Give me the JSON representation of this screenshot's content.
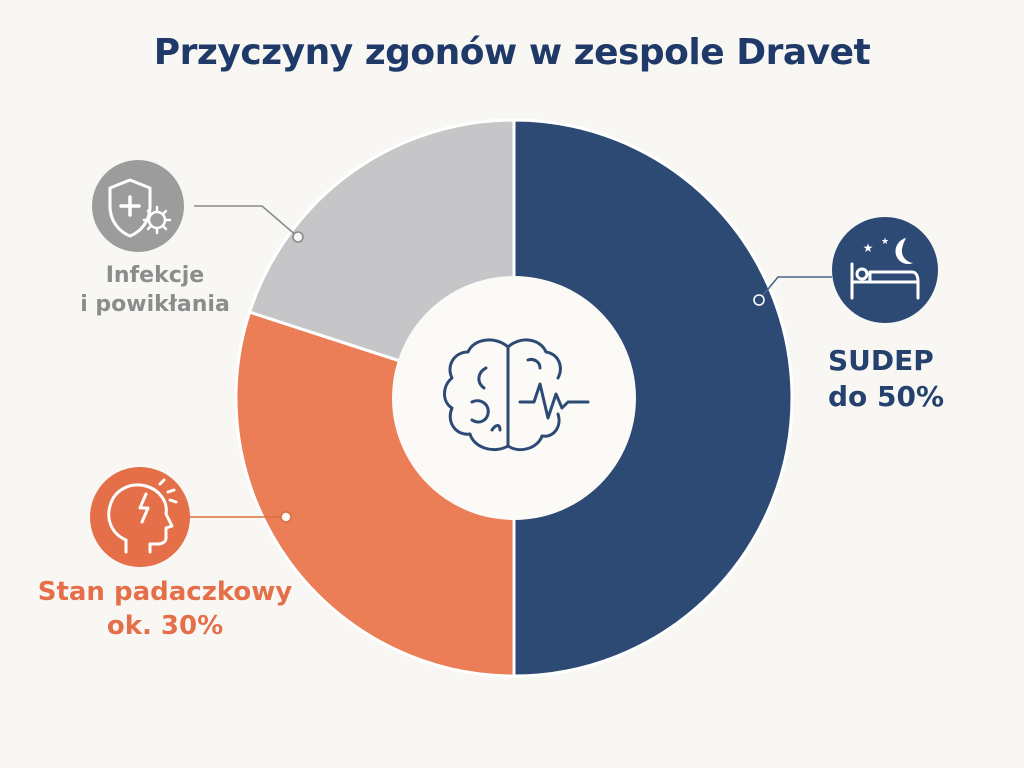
{
  "title": "Przyczyny zgonów w zespole Dravet",
  "chart_data": {
    "type": "pie",
    "variant": "donut",
    "title": "Przyczyny zgonów w zespole Dravet",
    "segments": [
      {
        "label": "SUDEP",
        "value_text": "do 50%",
        "value": 50,
        "color": "#2d4a74",
        "icon": "bed-night-icon"
      },
      {
        "label": "Stan padaczkowy",
        "value_text": "ok. 30%",
        "value": 30,
        "color": "#eb7e57",
        "icon": "head-seizure-icon"
      },
      {
        "label": "Infekcje i powikłania",
        "value_text": "",
        "value": 20,
        "color": "#c6c6c8",
        "icon": "shield-virus-icon"
      }
    ],
    "center_icon": "brain-pulse-icon"
  },
  "labels": {
    "infekcje_line1": "Infekcje",
    "infekcje_line2": "i powikłania",
    "sudep_line1": "SUDEP",
    "sudep_line2": "do 50%",
    "stan_line1": "Stan padaczkowy",
    "stan_line2": "ok. 30%"
  }
}
